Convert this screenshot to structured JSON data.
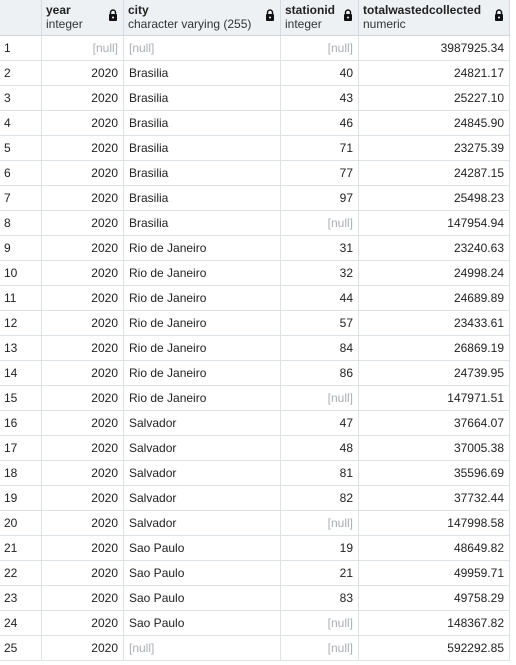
{
  "columns": [
    {
      "name": "",
      "type": ""
    },
    {
      "name": "year",
      "type": "integer"
    },
    {
      "name": "city",
      "type": "character varying (255)"
    },
    {
      "name": "stationid",
      "type": "integer"
    },
    {
      "name": "totalwastedcollected",
      "type": "numeric"
    }
  ],
  "null_label": "[null]",
  "rows": [
    {
      "n": "1",
      "year": null,
      "city": null,
      "stationid": null,
      "total": "3987925.34"
    },
    {
      "n": "2",
      "year": "2020",
      "city": "Brasilia",
      "stationid": "40",
      "total": "24821.17"
    },
    {
      "n": "3",
      "year": "2020",
      "city": "Brasilia",
      "stationid": "43",
      "total": "25227.10"
    },
    {
      "n": "4",
      "year": "2020",
      "city": "Brasilia",
      "stationid": "46",
      "total": "24845.90"
    },
    {
      "n": "5",
      "year": "2020",
      "city": "Brasilia",
      "stationid": "71",
      "total": "23275.39"
    },
    {
      "n": "6",
      "year": "2020",
      "city": "Brasilia",
      "stationid": "77",
      "total": "24287.15"
    },
    {
      "n": "7",
      "year": "2020",
      "city": "Brasilia",
      "stationid": "97",
      "total": "25498.23"
    },
    {
      "n": "8",
      "year": "2020",
      "city": "Brasilia",
      "stationid": null,
      "total": "147954.94"
    },
    {
      "n": "9",
      "year": "2020",
      "city": "Rio de Janeiro",
      "stationid": "31",
      "total": "23240.63"
    },
    {
      "n": "10",
      "year": "2020",
      "city": "Rio de Janeiro",
      "stationid": "32",
      "total": "24998.24"
    },
    {
      "n": "11",
      "year": "2020",
      "city": "Rio de Janeiro",
      "stationid": "44",
      "total": "24689.89"
    },
    {
      "n": "12",
      "year": "2020",
      "city": "Rio de Janeiro",
      "stationid": "57",
      "total": "23433.61"
    },
    {
      "n": "13",
      "year": "2020",
      "city": "Rio de Janeiro",
      "stationid": "84",
      "total": "26869.19"
    },
    {
      "n": "14",
      "year": "2020",
      "city": "Rio de Janeiro",
      "stationid": "86",
      "total": "24739.95"
    },
    {
      "n": "15",
      "year": "2020",
      "city": "Rio de Janeiro",
      "stationid": null,
      "total": "147971.51"
    },
    {
      "n": "16",
      "year": "2020",
      "city": "Salvador",
      "stationid": "47",
      "total": "37664.07"
    },
    {
      "n": "17",
      "year": "2020",
      "city": "Salvador",
      "stationid": "48",
      "total": "37005.38"
    },
    {
      "n": "18",
      "year": "2020",
      "city": "Salvador",
      "stationid": "81",
      "total": "35596.69"
    },
    {
      "n": "19",
      "year": "2020",
      "city": "Salvador",
      "stationid": "82",
      "total": "37732.44"
    },
    {
      "n": "20",
      "year": "2020",
      "city": "Salvador",
      "stationid": null,
      "total": "147998.58"
    },
    {
      "n": "21",
      "year": "2020",
      "city": "Sao Paulo",
      "stationid": "19",
      "total": "48649.82"
    },
    {
      "n": "22",
      "year": "2020",
      "city": "Sao Paulo",
      "stationid": "21",
      "total": "49959.71"
    },
    {
      "n": "23",
      "year": "2020",
      "city": "Sao Paulo",
      "stationid": "83",
      "total": "49758.29"
    },
    {
      "n": "24",
      "year": "2020",
      "city": "Sao Paulo",
      "stationid": null,
      "total": "148367.82"
    },
    {
      "n": "25",
      "year": "2020",
      "city": null,
      "stationid": null,
      "total": "592292.85"
    }
  ],
  "colors": {
    "header_bg": "#eef1f4",
    "null_text": "#a9adb2",
    "grid_line": "#dde2e6"
  },
  "icons": {
    "column_lock": "lock-icon"
  }
}
